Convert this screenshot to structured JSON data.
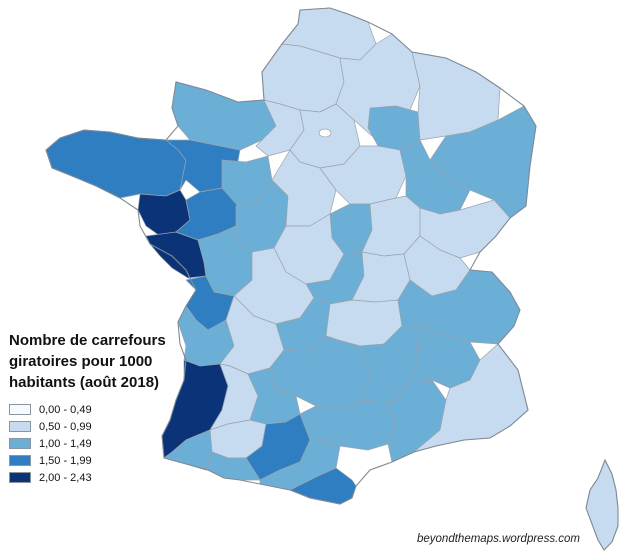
{
  "legend": {
    "title_lines": [
      "Nombre de carrefours",
      "giratoires pour 1000",
      "habitants (août 2018)"
    ],
    "classes": [
      {
        "label": "0,00 - 0,49",
        "color": "#f7fbff"
      },
      {
        "label": "0,50 - 0,99",
        "color": "#c6dbef"
      },
      {
        "label": "1,00 - 1,49",
        "color": "#6baed6"
      },
      {
        "label": "1,50 - 1,99",
        "color": "#2e7ec1"
      },
      {
        "label": "2,00 - 2,43",
        "color": "#0b3478"
      }
    ]
  },
  "credit": "beyondthemaps.wordpress.com",
  "colors": {
    "border": "#9aa3ad",
    "outline": "#7f8a96"
  }
}
